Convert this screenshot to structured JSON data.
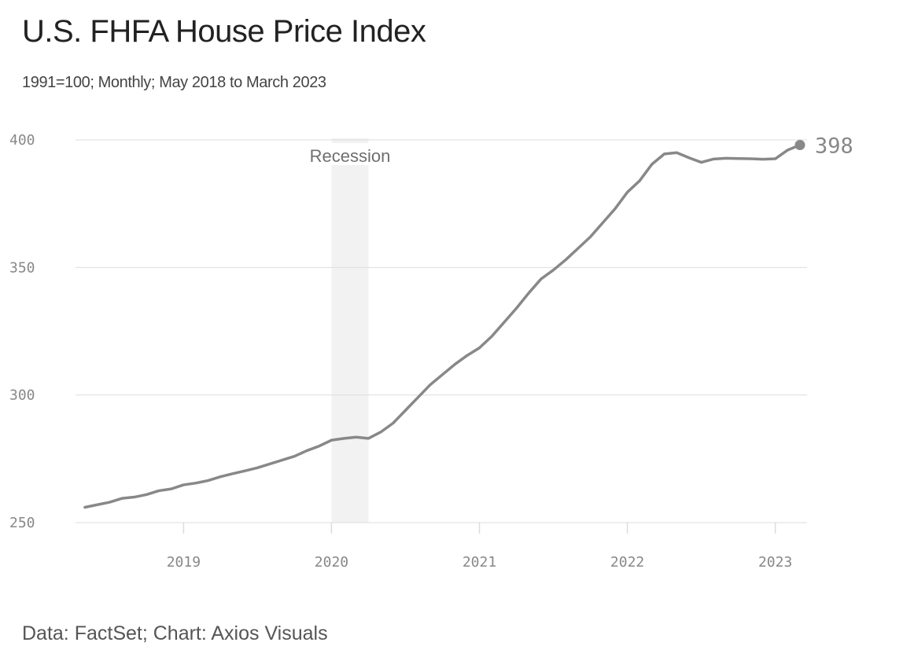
{
  "header": {
    "title": "U.S. FHFA House Price Index",
    "subtitle": "1991=100; Monthly; May 2018 to March 2023"
  },
  "footer": {
    "source": "Data: FactSet; Chart: Axios Visuals"
  },
  "colors": {
    "line": "#888888",
    "grid": "#dddddd",
    "recession_band": "#f2f2f2",
    "text": "#222222"
  },
  "chart_data": {
    "type": "line",
    "title": "U.S. FHFA House Price Index",
    "subtitle": "1991=100; Monthly; May 2018 to March 2023",
    "xlabel": "",
    "ylabel": "",
    "ylim": [
      250,
      400
    ],
    "xlim": [
      "2018-05",
      "2023-03"
    ],
    "y_ticks": [
      250,
      300,
      350,
      400
    ],
    "x_ticks": [
      {
        "date": "2019-01",
        "label": "2019"
      },
      {
        "date": "2020-01",
        "label": "2020"
      },
      {
        "date": "2021-01",
        "label": "2021"
      },
      {
        "date": "2022-01",
        "label": "2022"
      },
      {
        "date": "2023-01",
        "label": "2023"
      }
    ],
    "grid": "horizontal",
    "annotations": {
      "recession": {
        "label": "Recession",
        "start": "2020-01",
        "end": "2020-04"
      },
      "end_value_label": "398"
    },
    "series": [
      {
        "x": [
          "2018-05",
          "2018-06",
          "2018-07",
          "2018-08",
          "2018-09",
          "2018-10",
          "2018-11",
          "2018-12",
          "2019-01",
          "2019-02",
          "2019-03",
          "2019-04",
          "2019-05",
          "2019-06",
          "2019-07",
          "2019-08",
          "2019-09",
          "2019-10",
          "2019-11",
          "2019-12",
          "2020-01",
          "2020-02",
          "2020-03",
          "2020-04",
          "2020-05",
          "2020-06",
          "2020-07",
          "2020-08",
          "2020-09",
          "2020-10",
          "2020-11",
          "2020-12",
          "2021-01",
          "2021-02",
          "2021-03",
          "2021-04",
          "2021-05",
          "2021-06",
          "2021-07",
          "2021-08",
          "2021-09",
          "2021-10",
          "2021-11",
          "2021-12",
          "2022-01",
          "2022-02",
          "2022-03",
          "2022-04",
          "2022-05",
          "2022-06",
          "2022-07",
          "2022-08",
          "2022-09",
          "2022-10",
          "2022-11",
          "2022-12",
          "2023-01",
          "2023-02",
          "2023-03"
        ],
        "values": [
          256.0,
          257.0,
          258.0,
          259.5,
          260.0,
          261.0,
          262.5,
          263.2,
          264.8,
          265.5,
          266.5,
          268.0,
          269.2,
          270.3,
          271.5,
          273.0,
          274.5,
          276.0,
          278.2,
          280.0,
          282.3,
          283.0,
          283.5,
          283.0,
          285.5,
          289.0,
          294.0,
          299.0,
          304.0,
          308.0,
          312.0,
          315.5,
          318.5,
          323.0,
          328.5,
          334.0,
          340.0,
          345.5,
          349.0,
          353.0,
          357.5,
          362.0,
          367.5,
          373.0,
          379.5,
          384.0,
          390.5,
          394.5,
          395.0,
          393.0,
          391.2,
          392.5,
          392.8,
          392.7,
          392.6,
          392.4,
          392.6,
          396.0,
          398.0
        ]
      }
    ]
  }
}
